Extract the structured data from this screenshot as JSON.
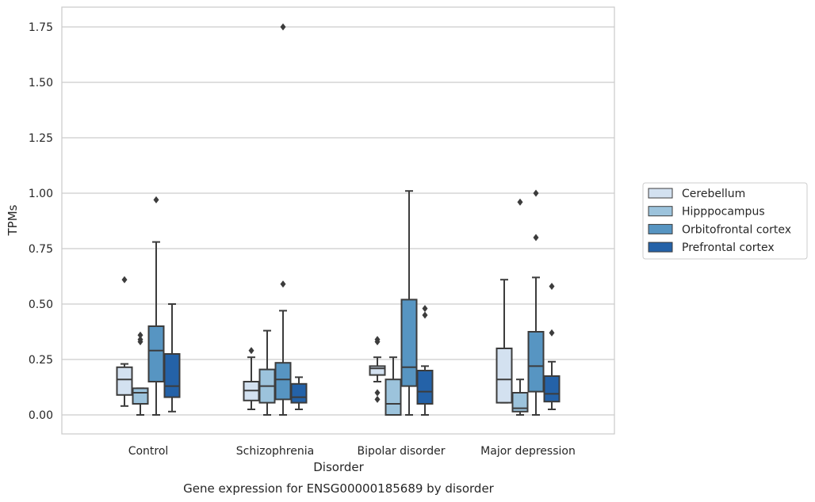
{
  "chart_data": {
    "type": "box",
    "xlabel": "Disorder",
    "ylabel": "TPMs",
    "caption": "Gene expression for ENSG00000185689 by disorder",
    "ylim": [
      -0.08,
      1.84
    ],
    "yticks": [
      "0.00",
      "0.25",
      "0.50",
      "0.75",
      "1.00",
      "1.25",
      "1.50",
      "1.75"
    ],
    "grid": "horizontal",
    "legend_position": "right",
    "categories": [
      "Control",
      "Schizophrenia",
      "Bipolar disorder",
      "Major depression"
    ],
    "series": [
      {
        "name": "Cerebellum",
        "color": "#d3e1f0"
      },
      {
        "name": "Hipppocampus",
        "color": "#9cc3dc"
      },
      {
        "name": "Orbitofrontal cortex",
        "color": "#5795c2"
      },
      {
        "name": "Prefrontal cortex",
        "color": "#2462a8"
      }
    ],
    "boxes": [
      [
        {
          "whislo": 0.04,
          "q1": 0.09,
          "med": 0.16,
          "q3": 0.215,
          "whishi": 0.23,
          "fliers": [
            0.61
          ]
        },
        {
          "whislo": 0.0,
          "q1": 0.05,
          "med": 0.1,
          "q3": 0.12,
          "whishi": 0.12,
          "fliers": [
            0.33,
            0.34,
            0.36
          ]
        },
        {
          "whislo": 0.0,
          "q1": 0.15,
          "med": 0.29,
          "q3": 0.4,
          "whishi": 0.78,
          "fliers": [
            0.97
          ]
        },
        {
          "whislo": 0.015,
          "q1": 0.08,
          "med": 0.13,
          "q3": 0.275,
          "whishi": 0.5,
          "fliers": []
        }
      ],
      [
        {
          "whislo": 0.025,
          "q1": 0.065,
          "med": 0.11,
          "q3": 0.15,
          "whishi": 0.26,
          "fliers": [
            0.29
          ]
        },
        {
          "whislo": 0.0,
          "q1": 0.055,
          "med": 0.13,
          "q3": 0.205,
          "whishi": 0.38,
          "fliers": []
        },
        {
          "whislo": 0.0,
          "q1": 0.07,
          "med": 0.16,
          "q3": 0.235,
          "whishi": 0.47,
          "fliers": [
            0.59,
            1.75
          ]
        },
        {
          "whislo": 0.025,
          "q1": 0.055,
          "med": 0.08,
          "q3": 0.14,
          "whishi": 0.17,
          "fliers": []
        }
      ],
      [
        {
          "whislo": 0.15,
          "q1": 0.18,
          "med": 0.21,
          "q3": 0.22,
          "whishi": 0.26,
          "fliers": [
            0.07,
            0.1,
            0.33,
            0.34
          ]
        },
        {
          "whislo": 0.0,
          "q1": 0.0,
          "med": 0.05,
          "q3": 0.16,
          "whishi": 0.26,
          "fliers": []
        },
        {
          "whislo": 0.0,
          "q1": 0.13,
          "med": 0.215,
          "q3": 0.52,
          "whishi": 1.01,
          "fliers": []
        },
        {
          "whislo": 0.0,
          "q1": 0.05,
          "med": 0.105,
          "q3": 0.2,
          "whishi": 0.22,
          "fliers": [
            0.45,
            0.48
          ]
        }
      ],
      [
        {
          "whislo": 0.055,
          "q1": 0.055,
          "med": 0.16,
          "q3": 0.3,
          "whishi": 0.61,
          "fliers": []
        },
        {
          "whislo": 0.0,
          "q1": 0.015,
          "med": 0.03,
          "q3": 0.1,
          "whishi": 0.16,
          "fliers": [
            0.96
          ]
        },
        {
          "whislo": 0.0,
          "q1": 0.105,
          "med": 0.22,
          "q3": 0.375,
          "whishi": 0.62,
          "fliers": [
            0.8,
            1.0
          ]
        },
        {
          "whislo": 0.025,
          "q1": 0.06,
          "med": 0.095,
          "q3": 0.175,
          "whishi": 0.24,
          "fliers": [
            0.37,
            0.58
          ]
        }
      ]
    ]
  }
}
